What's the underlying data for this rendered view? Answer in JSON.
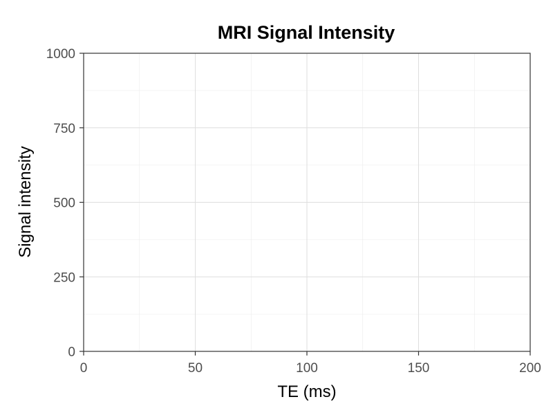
{
  "chart_data": {
    "type": "line",
    "title": "MRI Signal Intensity",
    "xlabel": "TE (ms)",
    "ylabel": "Signal intensity",
    "xlim": [
      0,
      200
    ],
    "ylim": [
      0,
      1000
    ],
    "x_ticks": [
      0,
      50,
      100,
      150,
      200
    ],
    "x_tick_labels": [
      "0",
      "50",
      "100",
      "150",
      "200"
    ],
    "y_ticks": [
      0,
      250,
      500,
      750,
      1000
    ],
    "y_tick_labels": [
      "0",
      "250",
      "500",
      "750",
      "1000"
    ],
    "x_minor_ticks": [
      25,
      75,
      125,
      175
    ],
    "y_minor_ticks": [
      125,
      375,
      625,
      875
    ],
    "grid": true,
    "legend": "none",
    "series": []
  }
}
